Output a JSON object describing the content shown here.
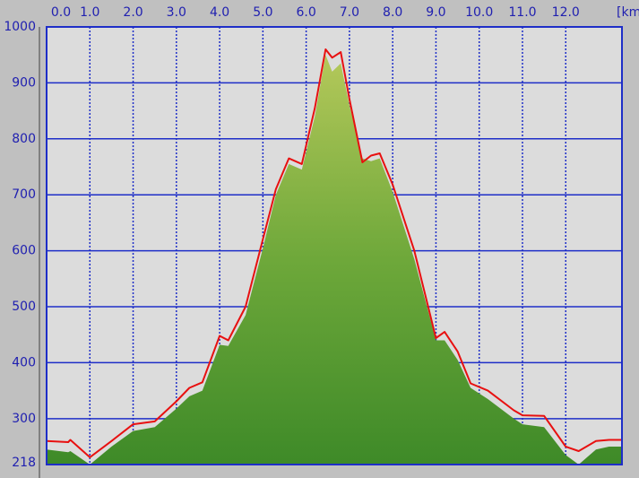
{
  "chart_data": {
    "type": "area",
    "x_label": "[km",
    "x": [
      0,
      0.5,
      0.55,
      1.0,
      1.5,
      2.0,
      2.5,
      3.0,
      3.3,
      3.6,
      4.0,
      4.2,
      4.6,
      5.0,
      5.3,
      5.6,
      5.9,
      6.2,
      6.45,
      6.6,
      6.8,
      7.0,
      7.3,
      7.5,
      7.7,
      8.0,
      8.5,
      9.0,
      9.2,
      9.5,
      9.8,
      10.2,
      10.8,
      11.0,
      11.5,
      12.0,
      12.3,
      12.7,
      13.0,
      13.3
    ],
    "series": [
      {
        "color": "#6ea83a",
        "values": [
          245,
          240,
          242,
          218,
          250,
          278,
          285,
          318,
          340,
          350,
          432,
          430,
          485,
          605,
          700,
          755,
          745,
          840,
          950,
          920,
          935,
          860,
          765,
          760,
          765,
          705,
          585,
          440,
          440,
          405,
          355,
          335,
          300,
          290,
          285,
          235,
          218,
          245,
          250,
          250
        ]
      },
      {
        "color": "#e81010",
        "values": [
          260,
          258,
          262,
          231,
          260,
          290,
          295,
          331,
          355,
          365,
          448,
          440,
          500,
          621,
          710,
          765,
          755,
          855,
          960,
          945,
          955,
          871,
          758,
          770,
          774,
          718,
          600,
          444,
          455,
          420,
          363,
          350,
          315,
          306,
          305,
          250,
          242,
          260,
          262,
          262
        ]
      }
    ],
    "xlim": [
      0,
      13.3
    ],
    "ylim": [
      218,
      1000
    ],
    "xticks": [
      {
        "value": 0,
        "label": "0.0"
      },
      {
        "value": 1,
        "label": "1.0"
      },
      {
        "value": 2,
        "label": "2.0"
      },
      {
        "value": 3,
        "label": "3.0"
      },
      {
        "value": 4,
        "label": "4.0"
      },
      {
        "value": 5,
        "label": "5.0"
      },
      {
        "value": 6,
        "label": "6.0"
      },
      {
        "value": 7,
        "label": "7.0"
      },
      {
        "value": 8,
        "label": "8.0"
      },
      {
        "value": 9,
        "label": "9.0"
      },
      {
        "value": 10,
        "label": "10.0"
      },
      {
        "value": 11,
        "label": "11.0"
      },
      {
        "value": 12,
        "label": "12.0"
      }
    ],
    "yticks": [
      218,
      300,
      400,
      500,
      600,
      700,
      800,
      900,
      1000
    ],
    "grid": true
  }
}
